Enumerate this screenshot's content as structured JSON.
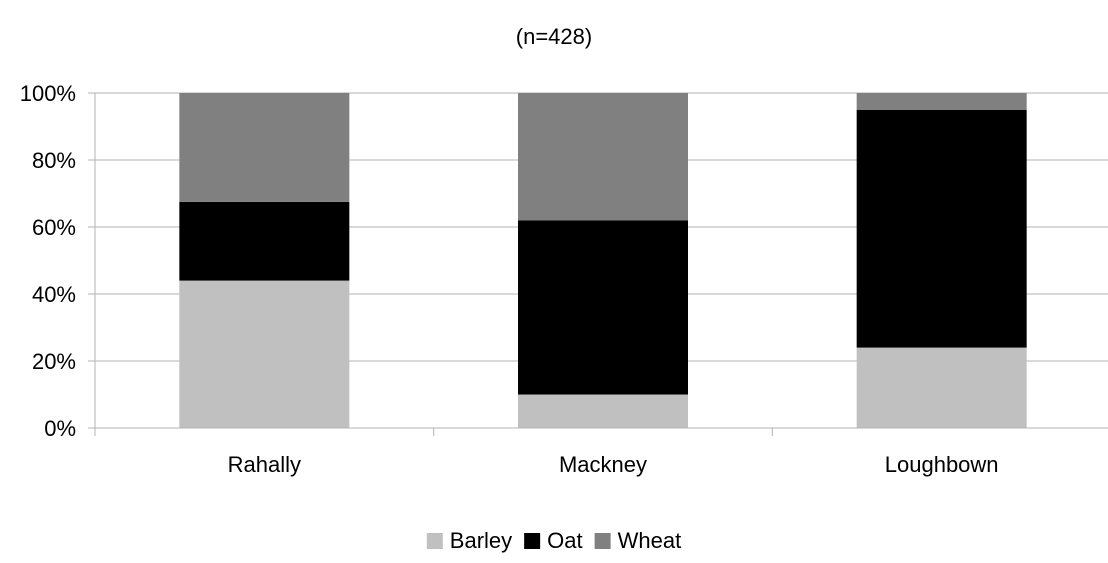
{
  "chart_data": {
    "type": "bar",
    "stacked": true,
    "percent_stacked": true,
    "title": "(n=428)",
    "categories": [
      "Rahally",
      "Mackney",
      "Loughbown"
    ],
    "series": [
      {
        "name": "Barley",
        "color": "#c0c0c0",
        "values": [
          44,
          10,
          24
        ]
      },
      {
        "name": "Oat",
        "color": "#000000",
        "values": [
          23.5,
          52,
          71
        ]
      },
      {
        "name": "Wheat",
        "color": "#808080",
        "values": [
          32.5,
          38,
          5
        ]
      }
    ],
    "ylim": [
      0,
      100
    ],
    "y_ticks": [
      "0%",
      "20%",
      "40%",
      "60%",
      "80%",
      "100%"
    ],
    "grid": true,
    "legend_position": "bottom"
  }
}
